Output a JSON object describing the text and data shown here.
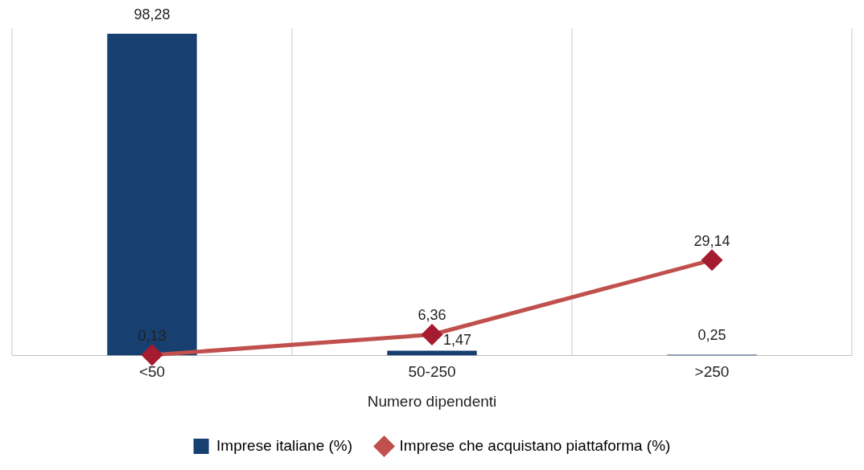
{
  "chart_data": {
    "type": "bar",
    "xlabel": "Numero dipendenti",
    "categories": [
      "<50",
      "50-250",
      ">250"
    ],
    "series": [
      {
        "name": "Imprese italiane (%)",
        "color": "#173f6f",
        "values": [
          98.28,
          1.47,
          0.25
        ],
        "value_labels": [
          "98,28",
          "1,47",
          "0,25"
        ]
      },
      {
        "name": "Imprese che acquistano piattaforma (%)",
        "type": "line",
        "color": "#c0504d",
        "values": [
          0.13,
          6.36,
          29.14
        ],
        "value_labels": [
          "0,13",
          "6,36",
          "29,14"
        ]
      }
    ],
    "tick_labels": "x",
    "grid": "x",
    "legend": "bottom",
    "marker": "diamond"
  }
}
